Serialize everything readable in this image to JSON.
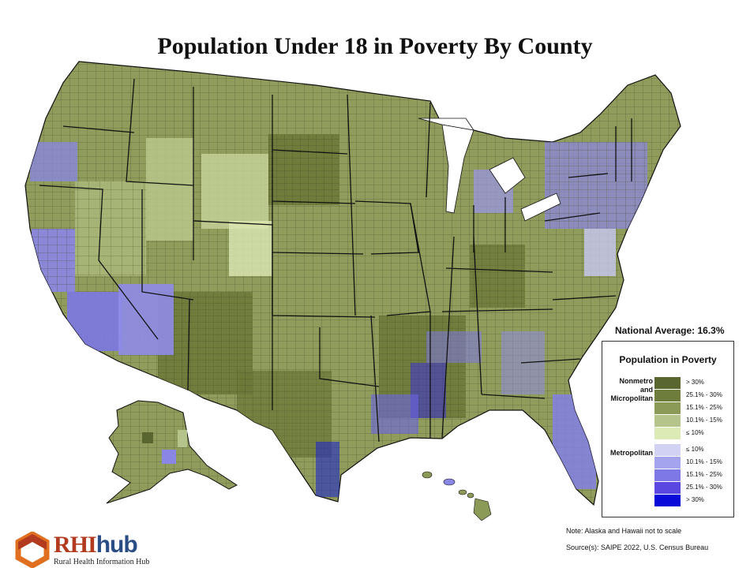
{
  "title": "Population Under 18 in Poverty By County",
  "national_average": "National Average: 16.3%",
  "legend": {
    "title": "Population in Poverty",
    "nonmetro_label": "Nonmetro\nand\nMicropolitan",
    "metro_label": "Metropolitan",
    "nonmetro": [
      {
        "label": "> 30%",
        "color": "#5a6630"
      },
      {
        "label": "25.1% - 30%",
        "color": "#6f7d3c"
      },
      {
        "label": "15.1% - 25%",
        "color": "#8c9a58"
      },
      {
        "label": "10.1% - 15%",
        "color": "#b5c48a"
      },
      {
        "label": "≤ 10%",
        "color": "#dcebb5"
      }
    ],
    "metro": [
      {
        "label": "≤ 10%",
        "color": "#d2d2f4"
      },
      {
        "label": "10.1% - 15%",
        "color": "#a3a3ee"
      },
      {
        "label": "15.1% - 25%",
        "color": "#7d78e6"
      },
      {
        "label": "25.1% - 30%",
        "color": "#5a46e0"
      },
      {
        "label": "> 30%",
        "color": "#0a0ad8"
      }
    ]
  },
  "note": "Note: Alaska and Hawaii not to scale",
  "source": "Source(s): SAIPE 2022, U.S. Census Bureau",
  "logo": {
    "text_rhi": "RHI",
    "text_hub": "hub",
    "subtitle": "Rural Health Information Hub"
  }
}
